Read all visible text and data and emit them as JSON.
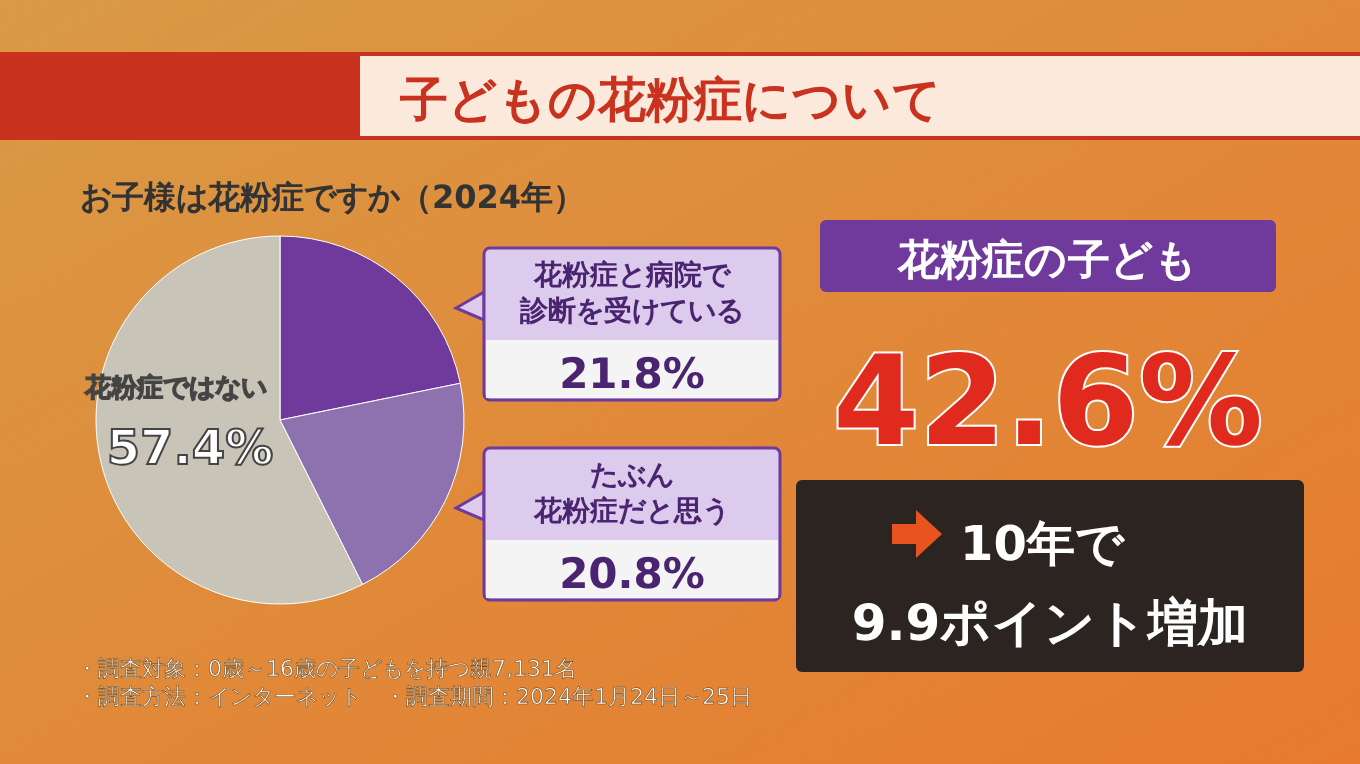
{
  "chart_data": {
    "type": "pie",
    "title": "子どもの花粉症について",
    "subtitle": "お子様は花粉症ですか（2024年）",
    "categories": [
      "花粉症と病院で診断を受けている",
      "たぶん花粉症だと思う",
      "花粉症ではない"
    ],
    "values": [
      21.8,
      20.8,
      57.4
    ],
    "colors": [
      "#6f3a9c",
      "#8e72b0",
      "#c9c4b8"
    ],
    "value_labels": [
      "21.8%",
      "20.8%",
      "57.4%"
    ],
    "annotations": [
      "花粉症の子ども",
      "42.6%",
      "10年で",
      "9.9ポイント増加",
      "・調査対象：0歳～16歳の子どもを持つ親7,131名",
      "・調査方法：インターネット　・調査期間：2024年1月24日～25日"
    ]
  }
}
